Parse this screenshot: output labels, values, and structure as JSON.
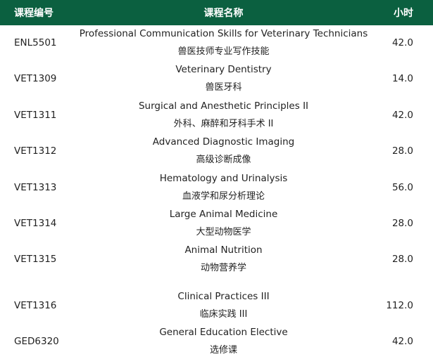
{
  "header": {
    "code": "课程编号",
    "name": "课程名称",
    "hours": "小时",
    "color": "#0b6040"
  },
  "rows": [
    {
      "code": "ENL5501",
      "name_en": "Professional Communication Skills for Veterinary Technicians",
      "name_zh": "兽医技师专业写作技能",
      "hours": "42.0"
    },
    {
      "code": "VET1309",
      "name_en": "Veterinary Dentistry",
      "name_zh": "兽医牙科",
      "hours": "14.0"
    },
    {
      "code": "VET1311",
      "name_en": "Surgical and Anesthetic Principles II",
      "name_zh": "外科、麻醉和牙科手术 II",
      "hours": "42.0"
    },
    {
      "code": "VET1312",
      "name_en": "Advanced Diagnostic Imaging",
      "name_zh": "高级诊断成像",
      "hours": "28.0"
    },
    {
      "code": "VET1313",
      "name_en": "Hematology and Urinalysis",
      "name_zh": "血液学和尿分析理论",
      "hours": "56.0"
    },
    {
      "code": "VET1314",
      "name_en": "Large Animal Medicine",
      "name_zh": "大型动物医学",
      "hours": "28.0"
    },
    {
      "code": "VET1315",
      "name_en": "Animal Nutrition",
      "name_zh": "动物营养学",
      "hours": "28.0"
    },
    {
      "code": "VET1316",
      "name_en": "Clinical Practices III",
      "name_zh": "临床实践 III",
      "hours": "112.0"
    },
    {
      "code": "GED6320",
      "name_en": "General Education Elective",
      "name_zh": "选修课",
      "hours": "42.0"
    }
  ]
}
